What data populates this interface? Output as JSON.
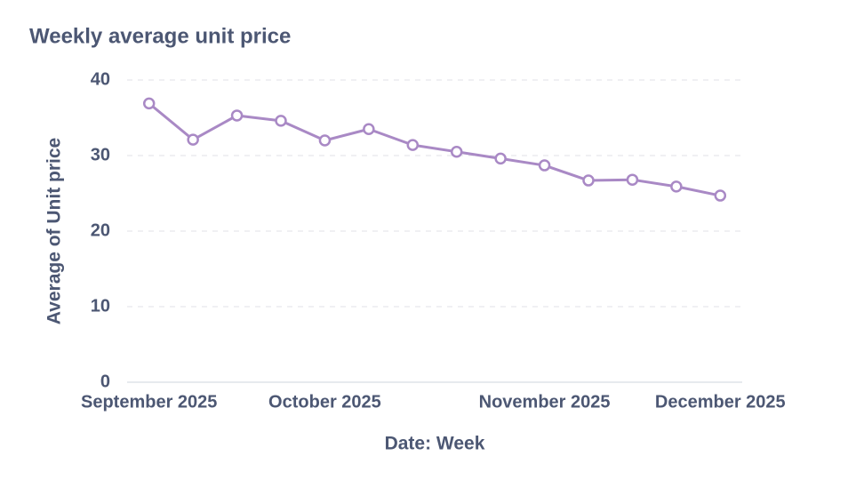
{
  "chart_data": {
    "type": "line",
    "title": "Weekly average unit price",
    "x_label": "Date: Week",
    "y_label": "Average of Unit price",
    "categories": [
      "September 2025",
      null,
      null,
      null,
      "October 2025",
      null,
      null,
      null,
      null,
      "November 2025",
      null,
      null,
      null,
      "December 2025"
    ],
    "series": [
      {
        "name": "Average of Unit price",
        "color": "#a989c5",
        "values": [
          36.9,
          32.1,
          35.3,
          34.6,
          32.0,
          33.5,
          31.4,
          30.5,
          29.6,
          28.7,
          26.7,
          26.8,
          25.9,
          24.7
        ]
      }
    ],
    "ylim": [
      0,
      40
    ],
    "yticks": [
      0,
      10,
      20,
      30,
      40
    ],
    "grid": true
  }
}
